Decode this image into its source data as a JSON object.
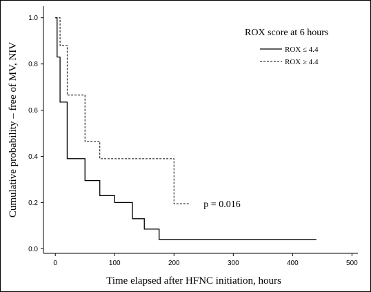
{
  "chart_data": {
    "type": "line",
    "title": "",
    "xlabel": "Time elapsed after HFNC initiation, hours",
    "ylabel": "Cumulative probability – free of MV, NIV",
    "xlim": [
      -20,
      510
    ],
    "ylim": [
      -0.02,
      1.05
    ],
    "x_ticks": [
      "0",
      "100",
      "200",
      "300",
      "400",
      "500"
    ],
    "y_ticks": [
      "0.0",
      "0.2",
      "0.4",
      "0.6",
      "0.8",
      "1.0"
    ],
    "grid": false,
    "legend": {
      "title": "ROX score at 6 hours",
      "placement": "top-right",
      "entries": [
        "ROX ≤ 4.4",
        "ROX ≥ 4.4"
      ]
    },
    "series": [
      {
        "name": "ROX ≤ 4.4",
        "style": "solid",
        "step": true,
        "x": [
          0,
          3,
          8,
          20,
          50,
          75,
          100,
          130,
          150,
          175,
          440
        ],
        "y": [
          1.0,
          0.83,
          0.635,
          0.39,
          0.295,
          0.23,
          0.2,
          0.13,
          0.085,
          0.04,
          0.04
        ]
      },
      {
        "name": "ROX ≥ 4.4",
        "style": "dashed",
        "step": true,
        "x": [
          0,
          8,
          20,
          50,
          75,
          200,
          225
        ],
        "y": [
          1.0,
          0.88,
          0.665,
          0.465,
          0.39,
          0.195,
          0.195
        ]
      }
    ],
    "annotations": [
      {
        "text": "p = 0.016",
        "x": 250,
        "y": 0.18
      }
    ]
  }
}
